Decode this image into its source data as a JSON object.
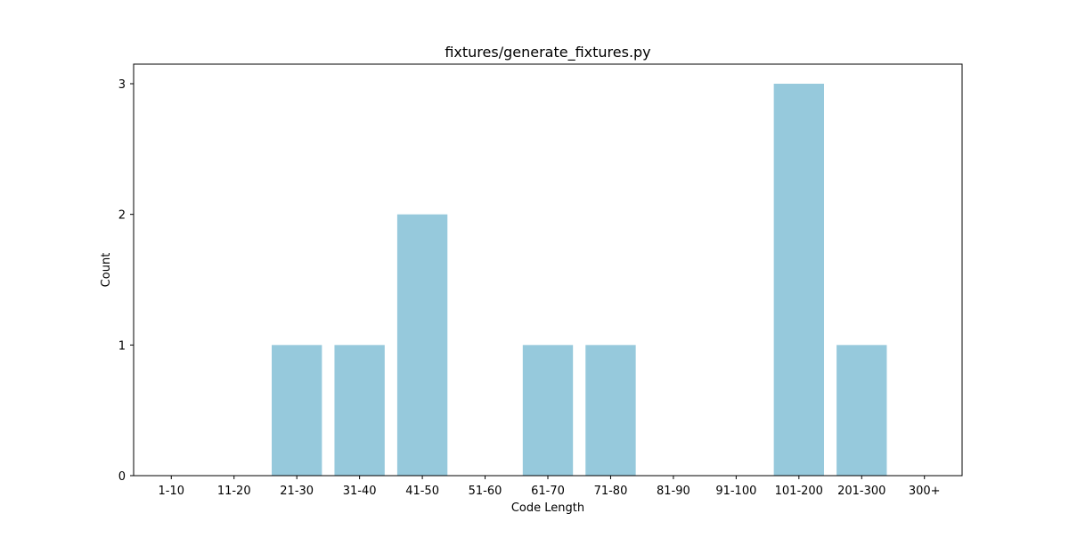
{
  "chart_data": {
    "type": "bar",
    "title": "fixtures/generate_fixtures.py",
    "xlabel": "Code Length",
    "ylabel": "Count",
    "categories": [
      "1-10",
      "11-20",
      "21-30",
      "31-40",
      "41-50",
      "51-60",
      "61-70",
      "71-80",
      "81-90",
      "91-100",
      "101-200",
      "201-300",
      "300+"
    ],
    "values": [
      0,
      0,
      1,
      1,
      2,
      0,
      1,
      1,
      0,
      0,
      3,
      1,
      0
    ],
    "ylim": [
      0,
      3.15
    ],
    "yticks": [
      0,
      1,
      2,
      3
    ],
    "bar_color": "#96c9dc",
    "grid": false,
    "legend": false
  }
}
